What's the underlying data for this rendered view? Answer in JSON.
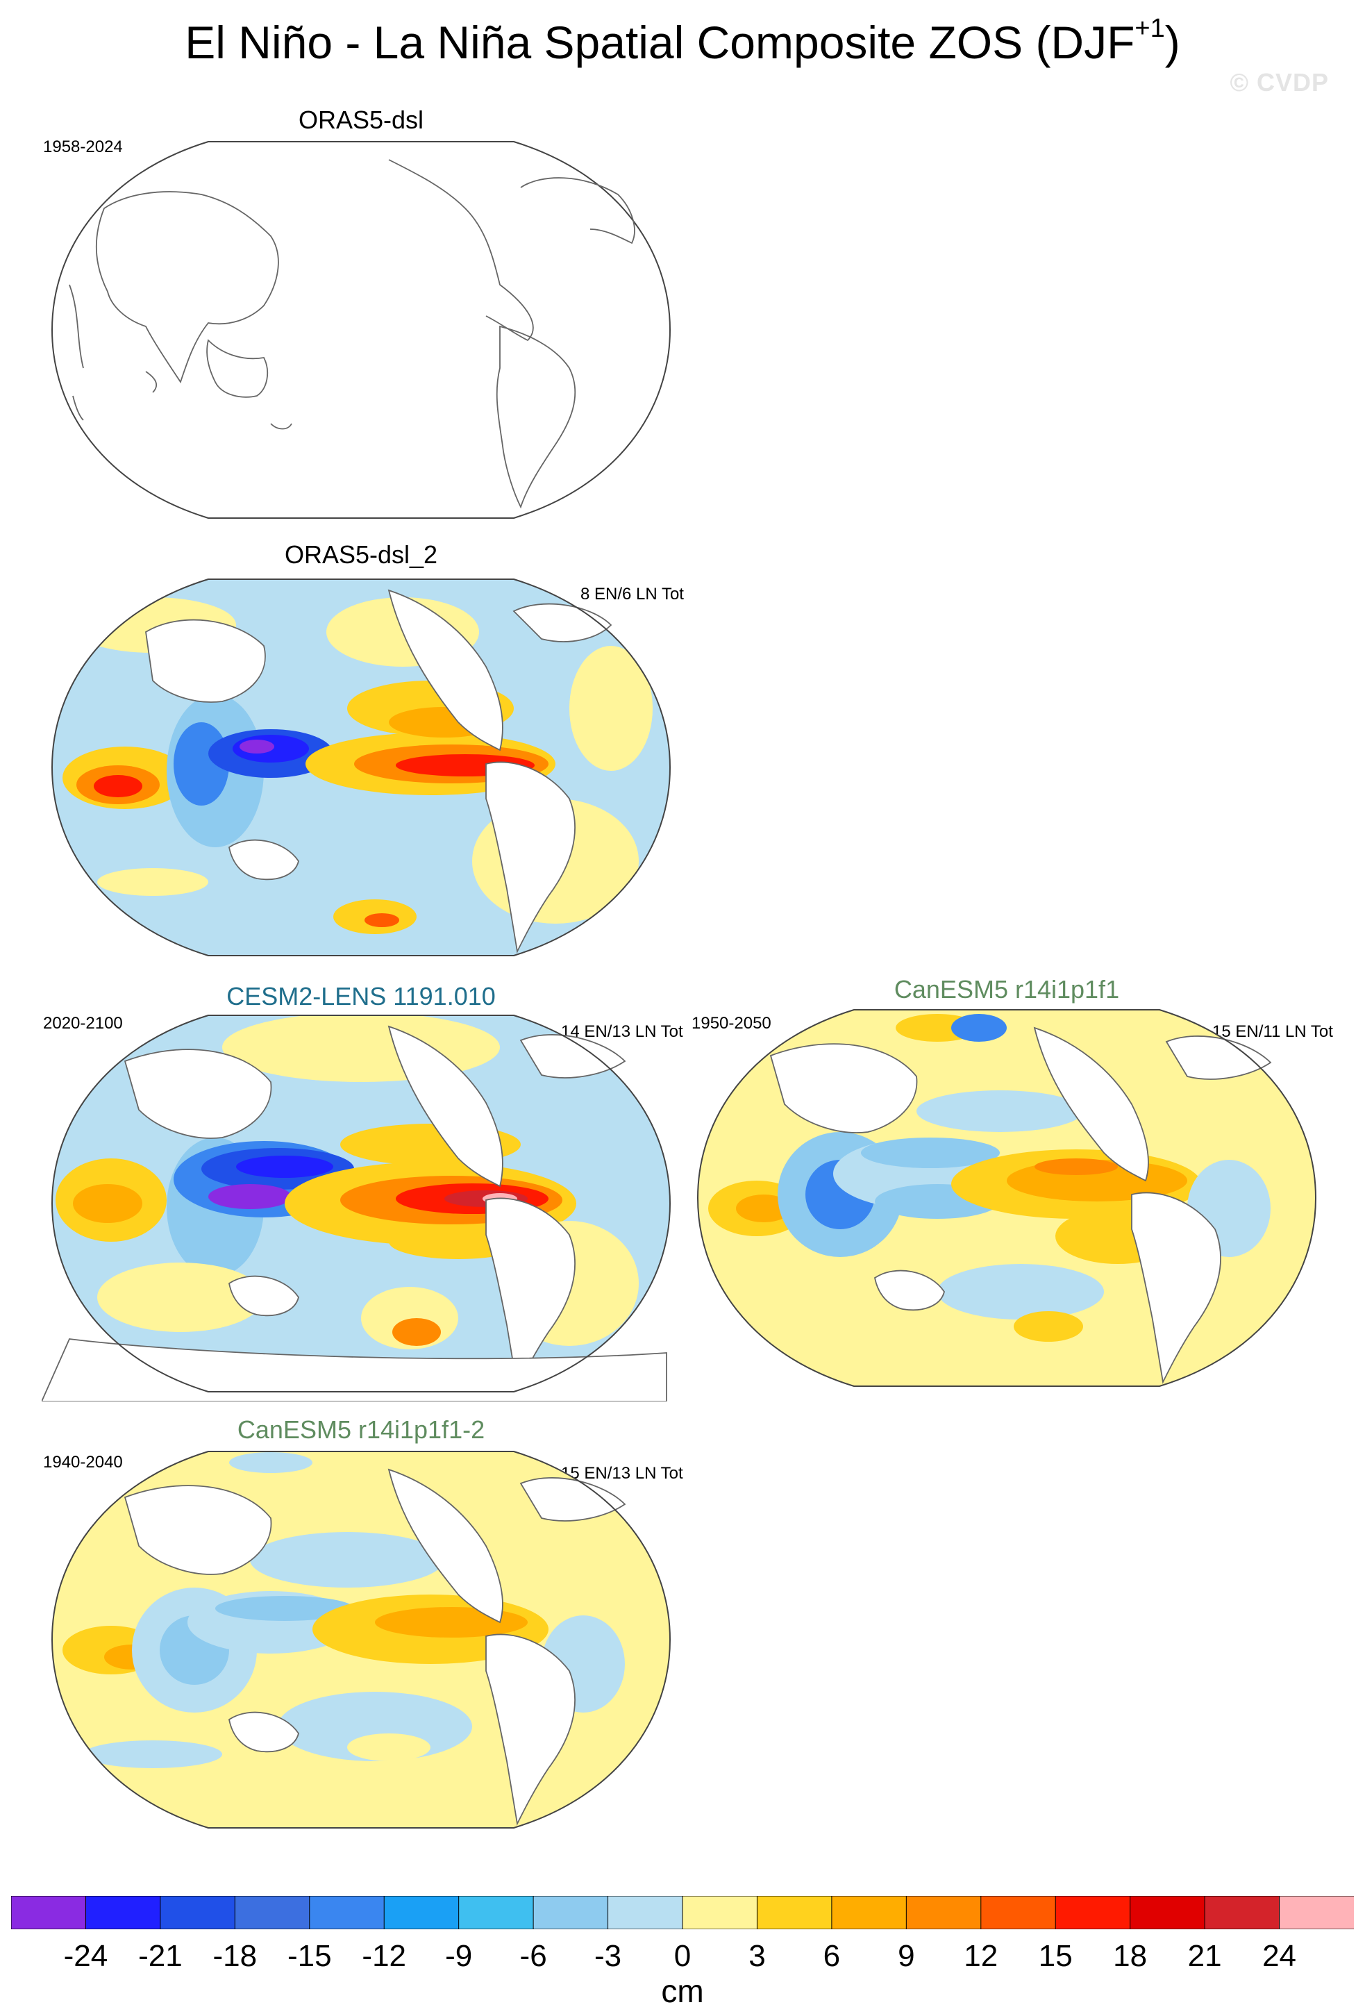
{
  "figure": {
    "title_main": "El Niño - La Niña Spatial Composite ZOS (DJF",
    "title_sup": "+1",
    "title_close": ")",
    "watermark": "© CVDP"
  },
  "panels": [
    {
      "id": "orasdsl",
      "title": "ORAS5-dsl",
      "title_color": "#000000",
      "period": "1958-2024",
      "count": "",
      "filled": false
    },
    {
      "id": "orasdsl2",
      "title": "ORAS5-dsl_2",
      "title_color": "#000000",
      "period": "",
      "count": "8 EN/6 LN Tot",
      "filled": true
    },
    {
      "id": "cesm2",
      "title": "CESM2-LENS 1191.010",
      "title_color": "#1f6e8c",
      "period": "2020-2100",
      "count": "14 EN/13 LN Tot",
      "filled": true
    },
    {
      "id": "canesm5",
      "title": "CanESM5 r14i1p1f1",
      "title_color": "#5f8c5f",
      "period": "1950-2050",
      "count": "15 EN/11 LN Tot",
      "filled": true
    },
    {
      "id": "canesm5b",
      "title": "CanESM5 r14i1p1f1-2",
      "title_color": "#5f8c5f",
      "period": "1940-2040",
      "count": "15 EN/13 LN Tot",
      "filled": true
    }
  ],
  "colorbar": {
    "units": "cm",
    "ticks": [
      "-24",
      "-21",
      "-18",
      "-15",
      "-12",
      "-9",
      "-6",
      "-3",
      "0",
      "3",
      "6",
      "9",
      "12",
      "15",
      "18",
      "21",
      "24"
    ],
    "colors": [
      "#8a2be2",
      "#2020ff",
      "#2050e8",
      "#3c6fe0",
      "#3a86f0",
      "#1aa0f5",
      "#3fbff0",
      "#8ecbef",
      "#b8dff2",
      "#fff59a",
      "#ffd21e",
      "#ffad00",
      "#ff8a00",
      "#ff5a00",
      "#ff1a00",
      "#e00000",
      "#d4232a",
      "#ffb3b8"
    ]
  }
}
